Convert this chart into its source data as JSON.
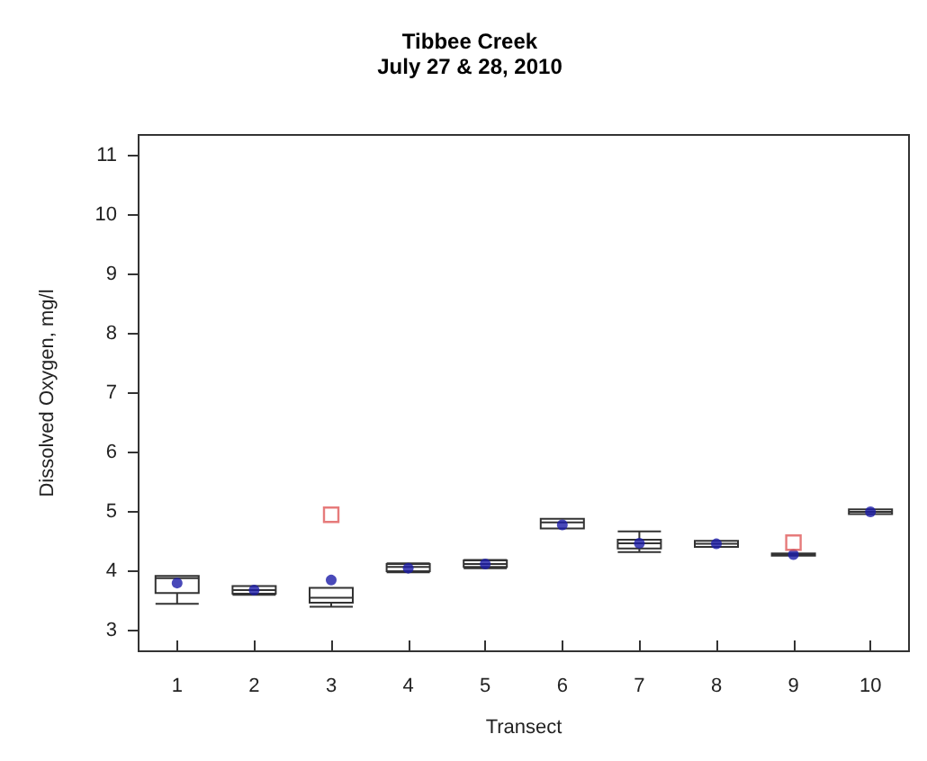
{
  "chart_data": {
    "type": "box",
    "title": "Tibbee Creek",
    "subtitle": "July 27 & 28, 2010",
    "xlabel": "Transect",
    "ylabel": "Dissolved Oxygen, mg/l",
    "categories": [
      "1",
      "2",
      "3",
      "4",
      "5",
      "6",
      "7",
      "8",
      "9",
      "10"
    ],
    "ylim": [
      2.65,
      11.35
    ],
    "yticks": [
      3,
      4,
      5,
      6,
      7,
      8,
      9,
      10,
      11
    ],
    "grid": false,
    "series": [
      {
        "color": "#333333",
        "boxes": [
          {
            "low": 3.45,
            "q1": 3.63,
            "median": 3.88,
            "q3": 3.92,
            "high": 3.92
          },
          {
            "low": 3.6,
            "q1": 3.62,
            "median": 3.68,
            "q3": 3.75,
            "high": 3.75
          },
          {
            "low": 3.4,
            "q1": 3.47,
            "median": 3.55,
            "q3": 3.72,
            "high": 3.72
          },
          {
            "low": 3.98,
            "q1": 4.0,
            "median": 4.07,
            "q3": 4.12,
            "high": 4.13
          },
          {
            "low": 4.05,
            "q1": 4.07,
            "median": 4.12,
            "q3": 4.18,
            "high": 4.19
          },
          {
            "low": 4.72,
            "q1": 4.72,
            "median": 4.82,
            "q3": 4.88,
            "high": 4.88
          },
          {
            "low": 4.32,
            "q1": 4.38,
            "median": 4.47,
            "q3": 4.53,
            "high": 4.67
          },
          {
            "low": 4.41,
            "q1": 4.41,
            "median": 4.46,
            "q3": 4.51,
            "high": 4.51
          },
          {
            "low": 4.26,
            "q1": 4.26,
            "median": 4.28,
            "q3": 4.3,
            "high": 4.3
          },
          {
            "low": 4.96,
            "q1": 4.96,
            "median": 5.0,
            "q3": 5.04,
            "high": 5.04
          }
        ]
      },
      {
        "type": "scatter",
        "color": "#1c1ca8",
        "marker": "circle",
        "x": [
          "1",
          "2",
          "3",
          "4",
          "5",
          "6",
          "7",
          "8",
          "9",
          "10"
        ],
        "values": [
          3.8,
          3.68,
          3.85,
          4.05,
          4.12,
          4.78,
          4.47,
          4.46,
          4.28,
          5.0
        ]
      },
      {
        "type": "scatter",
        "color": "#e05a5a",
        "marker": "square",
        "x": [
          "3",
          "9"
        ],
        "values": [
          4.95,
          4.48
        ]
      }
    ]
  }
}
